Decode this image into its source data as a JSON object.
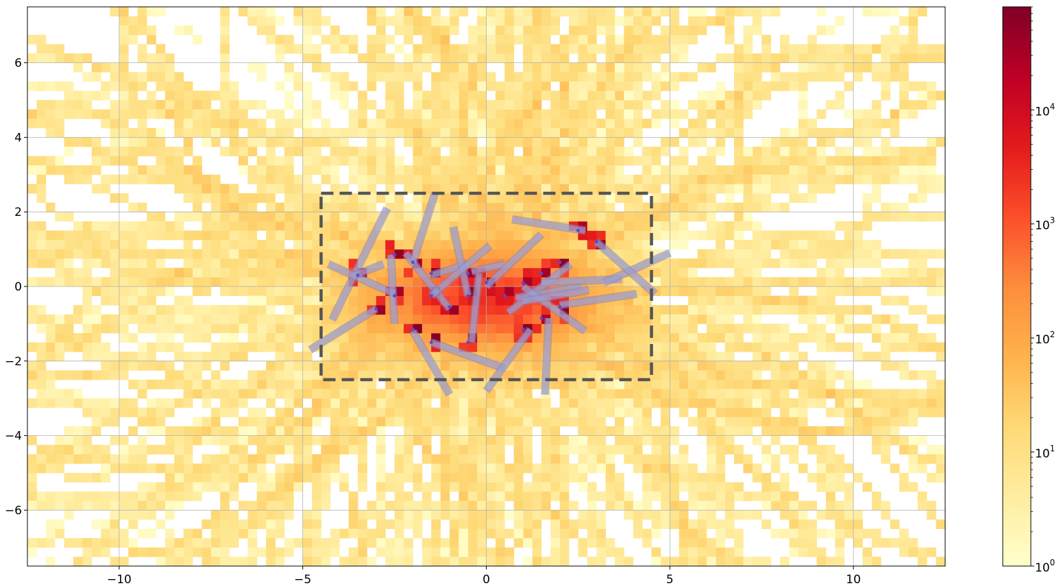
{
  "chart_data": {
    "type": "heatmap",
    "title": "",
    "xlabel": "",
    "ylabel": "",
    "xlim": [
      -12.5,
      12.5
    ],
    "ylim": [
      -7.5,
      7.5
    ],
    "x_ticks": [
      -10,
      -5,
      0,
      5,
      10
    ],
    "x_tick_labels": [
      "−10",
      "−5",
      "0",
      "5",
      "10"
    ],
    "y_ticks": [
      -6,
      -4,
      -2,
      0,
      2,
      4,
      6
    ],
    "y_tick_labels": [
      "−6",
      "−4",
      "−2",
      "0",
      "2",
      "4",
      "6"
    ],
    "grid": true,
    "colormap": "YlOrRd",
    "colormap_stops": [
      "#ffffcc",
      "#ffeda0",
      "#fed976",
      "#feb24c",
      "#fd8d3c",
      "#fc4e2a",
      "#e31a1c",
      "#bd0026",
      "#800026"
    ],
    "colorbar": {
      "scale": "log",
      "range": [
        1,
        80000
      ],
      "ticks": [
        1,
        10,
        100,
        1000,
        10000
      ],
      "tick_labels": [
        "10",
        "10",
        "10",
        "10",
        "10"
      ],
      "tick_exponents": [
        "0",
        "1",
        "2",
        "3",
        "4"
      ]
    },
    "bin_size": 0.25,
    "dense_region": {
      "x": [
        -4.5,
        4.5
      ],
      "y": [
        -2.5,
        2.5
      ],
      "peak_count": 80000
    },
    "ray_origins": [
      [
        -3.5,
        0.3
      ],
      [
        -3,
        -0.6
      ],
      [
        -2.5,
        0.85
      ],
      [
        -2.5,
        -0.25
      ],
      [
        -2,
        0.65
      ],
      [
        -1.5,
        0.35
      ],
      [
        -1.5,
        -0.25
      ],
      [
        -1,
        -0.55
      ],
      [
        -0.5,
        0.35
      ],
      [
        -0.5,
        -0.25
      ],
      [
        0,
        0.1
      ],
      [
        0.5,
        -0.25
      ],
      [
        1,
        0.1
      ],
      [
        1.5,
        0.35
      ],
      [
        1.5,
        -0.85
      ],
      [
        2,
        -0.55
      ],
      [
        2,
        0.65
      ],
      [
        2.5,
        1.5
      ],
      [
        3,
        1.2
      ],
      [
        -2,
        -1.15
      ],
      [
        -1.5,
        -1.5
      ],
      [
        -0.5,
        -1.5
      ],
      [
        1,
        -1.15
      ]
    ],
    "rectangle": {
      "x": [
        -4.5,
        4.5
      ],
      "y": [
        -2.5,
        2.5
      ],
      "style": "dashed",
      "color": "#555555"
    },
    "segments": [
      [
        -4.2,
        -0.9,
        -2.7,
        2.1
      ],
      [
        -4.8,
        -1.7,
        -3.0,
        -0.6
      ],
      [
        -4.3,
        0.6,
        -2.5,
        -0.2
      ],
      [
        -3.6,
        0.3,
        -2.8,
        0.6
      ],
      [
        -2.5,
        -1.0,
        -2.6,
        0.85
      ],
      [
        -2.2,
        0.9,
        -1.0,
        -0.6
      ],
      [
        -2.0,
        0.65,
        -1.4,
        2.5
      ],
      [
        -1.5,
        0.3,
        -0.5,
        0.6
      ],
      [
        -0.9,
        1.6,
        -0.5,
        -0.25
      ],
      [
        -0.4,
        -1.5,
        -0.2,
        0.35
      ],
      [
        -1.5,
        -0.25,
        0.1,
        1.1
      ],
      [
        -0.4,
        0.4,
        0.5,
        0.6
      ],
      [
        -2.0,
        -1.2,
        -1.0,
        -2.9
      ],
      [
        -1.5,
        -1.5,
        0.5,
        -2.2
      ],
      [
        0.0,
        -2.8,
        1.2,
        -1.15
      ],
      [
        0.0,
        0.0,
        1.5,
        1.4
      ],
      [
        0.6,
        -0.7,
        2.3,
        0.6
      ],
      [
        0.7,
        1.8,
        2.7,
        1.5
      ],
      [
        0.8,
        -0.3,
        2.6,
        0.0
      ],
      [
        1.0,
        0.0,
        2.7,
        -1.2
      ],
      [
        1.6,
        -2.9,
        1.7,
        -0.85
      ],
      [
        1.5,
        0.1,
        3.7,
        0.2
      ],
      [
        2.0,
        -0.5,
        4.1,
        -0.2
      ],
      [
        3.2,
        0.1,
        5.0,
        0.9
      ],
      [
        3.0,
        1.2,
        4.6,
        -0.2
      ],
      [
        1.0,
        -0.4,
        2.8,
        -0.1
      ]
    ],
    "random_seed": 12345
  }
}
